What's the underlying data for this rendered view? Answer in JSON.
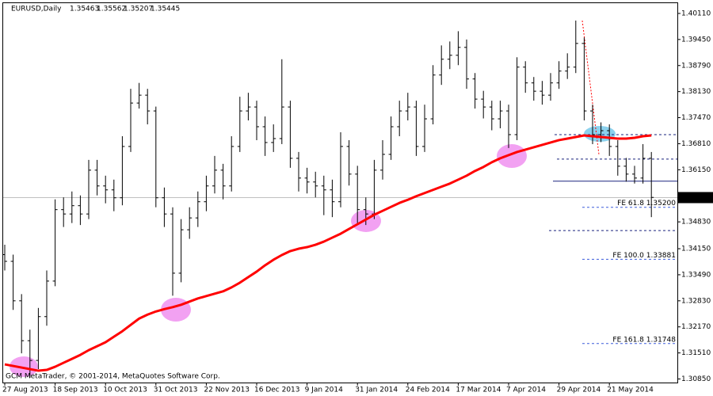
{
  "chart_data": {
    "type": "ohlc",
    "symbol": "EURUSD,Daily",
    "header_ohlc": [
      1.35463,
      1.35562,
      1.35207,
      1.35445
    ],
    "footer": "GCM MetaTrader, © 2001-2014, MetaQuotes Software Corp.",
    "categories": [
      "27 Aug 2013",
      null,
      null,
      null,
      null,
      null,
      "18 Sep 2013",
      null,
      null,
      null,
      null,
      null,
      "10 Oct 2013",
      null,
      null,
      null,
      null,
      null,
      "31 Oct 2013",
      null,
      null,
      null,
      null,
      null,
      "22 Nov 2013",
      null,
      null,
      null,
      null,
      null,
      "16 Dec 2013",
      null,
      null,
      null,
      null,
      null,
      "9 Jan 2014",
      null,
      null,
      null,
      null,
      null,
      "31 Jan 2014",
      null,
      null,
      null,
      null,
      null,
      "24 Feb 2014",
      null,
      null,
      null,
      null,
      null,
      "17 Mar 2014",
      null,
      null,
      null,
      null,
      null,
      "7 Apr 2014",
      null,
      null,
      null,
      null,
      null,
      "29 Apr 2014",
      null,
      null,
      null,
      null,
      null,
      "21 May 2014",
      null,
      null,
      null,
      null,
      null
    ],
    "open": [
      1.34,
      1.3383,
      1.3283,
      1.3182,
      1.3132,
      1.3243,
      1.3333,
      1.3514,
      1.3503,
      1.3524,
      1.3503,
      1.3614,
      1.3574,
      1.3564,
      1.3544,
      1.3674,
      1.3784,
      1.3804,
      1.3764,
      1.3544,
      1.3503,
      1.3353,
      1.3463,
      1.3493,
      1.3534,
      1.3574,
      1.3614,
      1.3574,
      1.3674,
      1.3764,
      1.3774,
      1.3724,
      1.3684,
      1.3694,
      1.3774,
      1.3644,
      1.3594,
      1.3584,
      1.3574,
      1.3564,
      1.3534,
      1.3674,
      1.3604,
      1.3514,
      1.3503,
      1.3614,
      1.3654,
      1.3724,
      1.3764,
      1.3774,
      1.3674,
      1.3744,
      1.3855,
      1.3895,
      1.3905,
      1.3925,
      1.3845,
      1.3794,
      1.3774,
      1.3744,
      1.3764,
      1.3704,
      1.3875,
      1.3835,
      1.3814,
      1.3804,
      1.3835,
      1.3865,
      1.3875,
      1.3935,
      1.3764,
      1.3704,
      1.3714,
      1.3674,
      1.3624,
      1.3604,
      1.3594,
      1.3644
    ],
    "high": [
      1.3425,
      1.34,
      1.33,
      1.321,
      1.3265,
      1.336,
      1.354,
      1.3545,
      1.356,
      1.355,
      1.364,
      1.364,
      1.36,
      1.359,
      1.37,
      1.382,
      1.3835,
      1.382,
      1.3775,
      1.357,
      1.352,
      1.349,
      1.352,
      1.356,
      1.36,
      1.365,
      1.363,
      1.37,
      1.38,
      1.381,
      1.379,
      1.375,
      1.373,
      1.3895,
      1.379,
      1.366,
      1.362,
      1.361,
      1.36,
      1.359,
      1.371,
      1.369,
      1.3625,
      1.3545,
      1.364,
      1.369,
      1.375,
      1.379,
      1.381,
      1.379,
      1.378,
      1.388,
      1.393,
      1.394,
      1.3966,
      1.3945,
      1.386,
      1.3815,
      1.379,
      1.379,
      1.378,
      1.39,
      1.389,
      1.385,
      1.384,
      1.386,
      1.389,
      1.391,
      1.3993,
      1.395,
      1.378,
      1.3735,
      1.373,
      1.369,
      1.3645,
      1.3625,
      1.368,
      1.366
    ],
    "low": [
      1.336,
      1.326,
      1.315,
      1.3088,
      1.311,
      1.322,
      1.332,
      1.347,
      1.348,
      1.3475,
      1.349,
      1.355,
      1.353,
      1.351,
      1.3525,
      1.366,
      1.377,
      1.373,
      1.352,
      1.347,
      1.3296,
      1.333,
      1.344,
      1.347,
      1.351,
      1.3555,
      1.354,
      1.356,
      1.366,
      1.374,
      1.369,
      1.365,
      1.366,
      1.368,
      1.362,
      1.356,
      1.3555,
      1.3545,
      1.35,
      1.3495,
      1.352,
      1.3575,
      1.348,
      1.3475,
      1.349,
      1.359,
      1.364,
      1.37,
      1.374,
      1.365,
      1.366,
      1.373,
      1.383,
      1.387,
      1.388,
      1.382,
      1.377,
      1.3745,
      1.3715,
      1.372,
      1.367,
      1.369,
      1.381,
      1.379,
      1.378,
      1.379,
      1.382,
      1.3845,
      1.386,
      1.374,
      1.368,
      1.3685,
      1.365,
      1.36,
      1.3585,
      1.358,
      1.358,
      1.3495
    ],
    "close": [
      1.3383,
      1.3283,
      1.3182,
      1.3132,
      1.3243,
      1.3333,
      1.3514,
      1.3503,
      1.3524,
      1.3503,
      1.3614,
      1.3574,
      1.3564,
      1.3544,
      1.3674,
      1.3784,
      1.3804,
      1.3764,
      1.3544,
      1.3503,
      1.3353,
      1.3463,
      1.3493,
      1.3534,
      1.3574,
      1.3614,
      1.3574,
      1.3674,
      1.3764,
      1.3774,
      1.3724,
      1.3684,
      1.3694,
      1.3774,
      1.3644,
      1.3594,
      1.3584,
      1.3574,
      1.3564,
      1.3534,
      1.3674,
      1.3604,
      1.3514,
      1.3503,
      1.3614,
      1.3654,
      1.3724,
      1.3764,
      1.3774,
      1.3674,
      1.3744,
      1.3855,
      1.3895,
      1.3905,
      1.3925,
      1.3845,
      1.3794,
      1.3774,
      1.3744,
      1.3764,
      1.3704,
      1.3875,
      1.3835,
      1.3814,
      1.3804,
      1.3835,
      1.3865,
      1.3875,
      1.3935,
      1.3764,
      1.3704,
      1.3714,
      1.3674,
      1.3624,
      1.3604,
      1.3594,
      1.3644,
      1.3545
    ],
    "bar_color": "#000000",
    "moving_average": {
      "color": "#ff0000",
      "values": [
        1.3122,
        1.3118,
        1.3114,
        1.311,
        1.3106,
        1.3108,
        1.3116,
        1.3126,
        1.3136,
        1.3146,
        1.3158,
        1.3168,
        1.3178,
        1.3192,
        1.3206,
        1.3222,
        1.3238,
        1.3248,
        1.3256,
        1.3262,
        1.3267,
        1.3273,
        1.3281,
        1.3289,
        1.3295,
        1.3301,
        1.3307,
        1.3317,
        1.3329,
        1.3343,
        1.3357,
        1.3373,
        1.3387,
        1.3399,
        1.3409,
        1.3415,
        1.3419,
        1.3425,
        1.3433,
        1.3443,
        1.3453,
        1.3465,
        1.3477,
        1.3489,
        1.3501,
        1.3511,
        1.3521,
        1.3531,
        1.3539,
        1.3548,
        1.3556,
        1.3564,
        1.3572,
        1.358,
        1.359,
        1.36,
        1.3612,
        1.3622,
        1.3634,
        1.3644,
        1.3652,
        1.366,
        1.3666,
        1.3672,
        1.3678,
        1.3684,
        1.369,
        1.3694,
        1.3698,
        1.3702,
        1.37,
        1.3698,
        1.3696,
        1.3694,
        1.3694,
        1.3696,
        1.37,
        1.3702
      ]
    },
    "ylim": [
      1.3078,
      1.4035
    ],
    "yticks": [
      {
        "value": 1.4011,
        "label": "1.40110"
      },
      {
        "value": 1.3945,
        "label": "1.39450"
      },
      {
        "value": 1.3879,
        "label": "1.38790"
      },
      {
        "value": 1.3813,
        "label": "1.38130"
      },
      {
        "value": 1.3747,
        "label": "1.37470"
      },
      {
        "value": 1.3681,
        "label": "1.36810"
      },
      {
        "value": 1.3615,
        "label": "1.36150"
      },
      {
        "value": 1.3483,
        "label": "1.34830"
      },
      {
        "value": 1.3415,
        "label": "1.34150"
      },
      {
        "value": 1.3349,
        "label": "1.33490"
      },
      {
        "value": 1.3283,
        "label": "1.32830"
      },
      {
        "value": 1.3217,
        "label": "1.32170"
      },
      {
        "value": 1.3151,
        "label": "1.31510"
      },
      {
        "value": 1.3085,
        "label": "1.30850"
      }
    ],
    "last_price": 1.35445,
    "levels": [
      {
        "value": 1.3704,
        "dashed": true,
        "color": "#1a237e"
      },
      {
        "value": 1.3642,
        "dashed": true,
        "color": "#1a237e"
      },
      {
        "value": 1.3586,
        "dashed": false,
        "color": "#1a237e"
      },
      {
        "value": 1.3461,
        "dashed": true,
        "color": "#1a237e"
      }
    ],
    "fibo": [
      {
        "label": "FE 61.8  1.35200",
        "value": 1.352
      },
      {
        "label": "FE 100.0  1.33881",
        "value": 1.33881
      },
      {
        "label": "FE 161.8  1.31748",
        "value": 1.31748
      }
    ],
    "fibo_color": "#3b5bdb"
  }
}
